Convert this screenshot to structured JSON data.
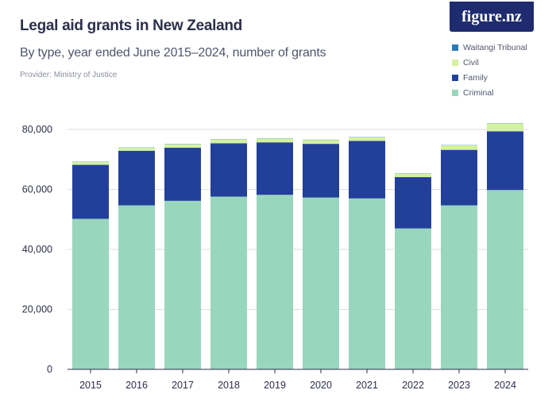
{
  "header": {
    "title": "Legal aid grants in New Zealand",
    "subtitle": "By type, year ended June 2015–2024, number of grants",
    "provider": "Provider: Ministry of Justice",
    "logo": "figure.nz"
  },
  "colors": {
    "waitangi": "#2a7bb6",
    "civil": "#d4f29e",
    "family": "#22409a",
    "criminal": "#99d6be",
    "grid": "#dddddd",
    "logo_bg": "#1e2b6e"
  },
  "chart_data": {
    "type": "bar",
    "stacked": true,
    "title": "Legal aid grants in New Zealand",
    "xlabel": "",
    "ylabel": "",
    "ylim": [
      0,
      80000
    ],
    "yticks": [
      0,
      20000,
      40000,
      60000,
      80000
    ],
    "ytick_labels": [
      "0",
      "20,000",
      "40,000",
      "60,000",
      "80,000"
    ],
    "grid": true,
    "legend_position": "top-right",
    "categories": [
      "2015",
      "2016",
      "2017",
      "2018",
      "2019",
      "2020",
      "2021",
      "2022",
      "2023",
      "2024"
    ],
    "series": [
      {
        "name": "Criminal",
        "key": "criminal",
        "values": [
          50200,
          54700,
          56200,
          57600,
          58200,
          57300,
          57000,
          47000,
          54700,
          59800
        ]
      },
      {
        "name": "Family",
        "key": "family",
        "values": [
          18000,
          18200,
          17700,
          17800,
          17500,
          17900,
          19200,
          17100,
          18500,
          19600
        ]
      },
      {
        "name": "Civil",
        "key": "civil",
        "values": [
          1000,
          1000,
          1200,
          1300,
          1300,
          1300,
          1200,
          1200,
          1500,
          2600
        ]
      },
      {
        "name": "Waitangi Tribunal",
        "key": "waitangi",
        "values": [
          80,
          80,
          80,
          80,
          80,
          80,
          80,
          80,
          80,
          80
        ]
      }
    ],
    "legend_order": [
      "Waitangi Tribunal",
      "Civil",
      "Family",
      "Criminal"
    ]
  }
}
